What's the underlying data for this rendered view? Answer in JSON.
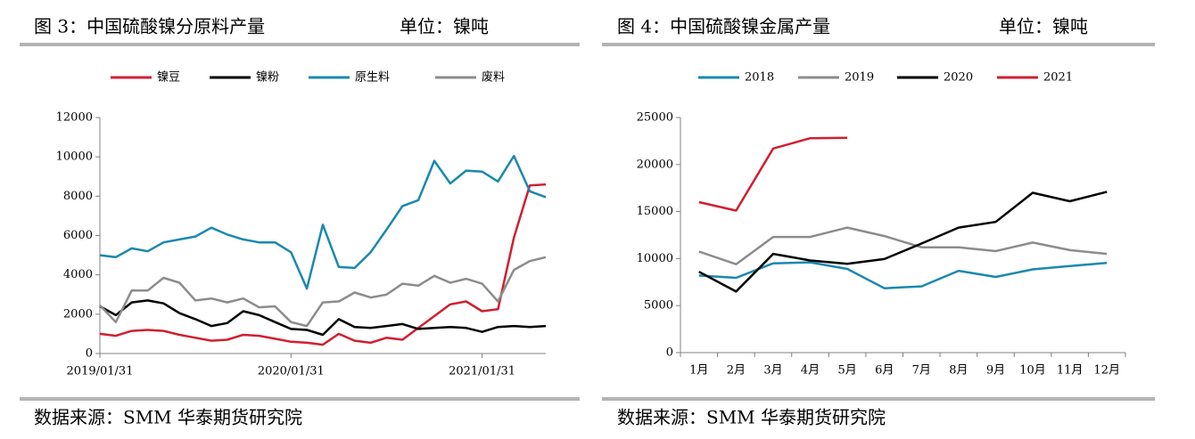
{
  "chart_data": [
    {
      "type": "line",
      "title": "图 3：中国硫酸镍分原料产量",
      "unit": "单位：镍吨",
      "source": "数据来源：SMM 华泰期货研究院",
      "categories": [
        "2019/01/31",
        null,
        null,
        null,
        null,
        null,
        null,
        null,
        null,
        null,
        null,
        null,
        "2020/01/31",
        null,
        null,
        null,
        null,
        null,
        null,
        null,
        null,
        null,
        null,
        null,
        "2021/01/31",
        null,
        null,
        null,
        null
      ],
      "series": [
        {
          "name": "镍豆",
          "color": "#d0202f",
          "values": [
            1000,
            900,
            1150,
            1200,
            1150,
            950,
            800,
            650,
            700,
            950,
            900,
            750,
            600,
            550,
            450,
            1000,
            650,
            550,
            800,
            700,
            1300,
            1900,
            2500,
            2650,
            2150,
            2250,
            5900,
            8550,
            8600
          ]
        },
        {
          "name": "镍粉",
          "color": "#000000",
          "values": [
            2400,
            1950,
            2600,
            2700,
            2550,
            2050,
            1750,
            1400,
            1550,
            2150,
            1950,
            1600,
            1250,
            1200,
            950,
            1750,
            1350,
            1300,
            1400,
            1500,
            1250,
            1300,
            1350,
            1300,
            1100,
            1350,
            1400,
            1350,
            1400
          ]
        },
        {
          "name": "原生料",
          "color": "#1a88b0",
          "values": [
            5000,
            4900,
            5350,
            5200,
            5650,
            5800,
            5950,
            6400,
            6050,
            5800,
            5650,
            5650,
            5150,
            3300,
            6550,
            4400,
            4350,
            5150,
            6300,
            7500,
            7800,
            9800,
            8650,
            9300,
            9250,
            8750,
            10050,
            8250,
            7950
          ]
        },
        {
          "name": "废料",
          "color": "#8c8c8c",
          "values": [
            2450,
            1600,
            3200,
            3200,
            3850,
            3600,
            2700,
            2800,
            2600,
            2800,
            2350,
            2400,
            1600,
            1400,
            2600,
            2650,
            3100,
            2850,
            3000,
            3550,
            3450,
            3950,
            3600,
            3800,
            3550,
            2650,
            4250,
            4700,
            4900
          ]
        }
      ],
      "ylim": [
        0,
        12000
      ],
      "yticks": [
        0,
        2000,
        4000,
        6000,
        8000,
        10000,
        12000
      ],
      "grid": false,
      "legend": "top"
    },
    {
      "type": "line",
      "title": "图 4：中国硫酸镍金属产量",
      "unit": "单位：镍吨",
      "source": "数据来源：SMM 华泰期货研究院",
      "categories": [
        "1月",
        "2月",
        "3月",
        "4月",
        "5月",
        "6月",
        "7月",
        "8月",
        "9月",
        "10月",
        "11月",
        "12月"
      ],
      "series": [
        {
          "name": "2018",
          "color": "#1a88b0",
          "values": [
            8200,
            7950,
            9500,
            9600,
            8900,
            6850,
            7050,
            8700,
            8050,
            8850,
            9200,
            9550
          ]
        },
        {
          "name": "2019",
          "color": "#8c8c8c",
          "values": [
            10750,
            9400,
            12300,
            12300,
            13300,
            12400,
            11200,
            11200,
            10800,
            11700,
            10900,
            10500
          ]
        },
        {
          "name": "2020",
          "color": "#000000",
          "values": [
            8600,
            6500,
            10500,
            9800,
            9450,
            9950,
            11600,
            13300,
            13900,
            17000,
            16100,
            17100
          ]
        },
        {
          "name": "2021",
          "color": "#d0202f",
          "values": [
            16000,
            15100,
            21700,
            22800,
            22850,
            null,
            null,
            null,
            null,
            null,
            null,
            null
          ]
        }
      ],
      "ylim": [
        0,
        25000
      ],
      "yticks": [
        0,
        5000,
        10000,
        15000,
        20000,
        25000
      ],
      "grid": false,
      "legend": "top"
    }
  ]
}
